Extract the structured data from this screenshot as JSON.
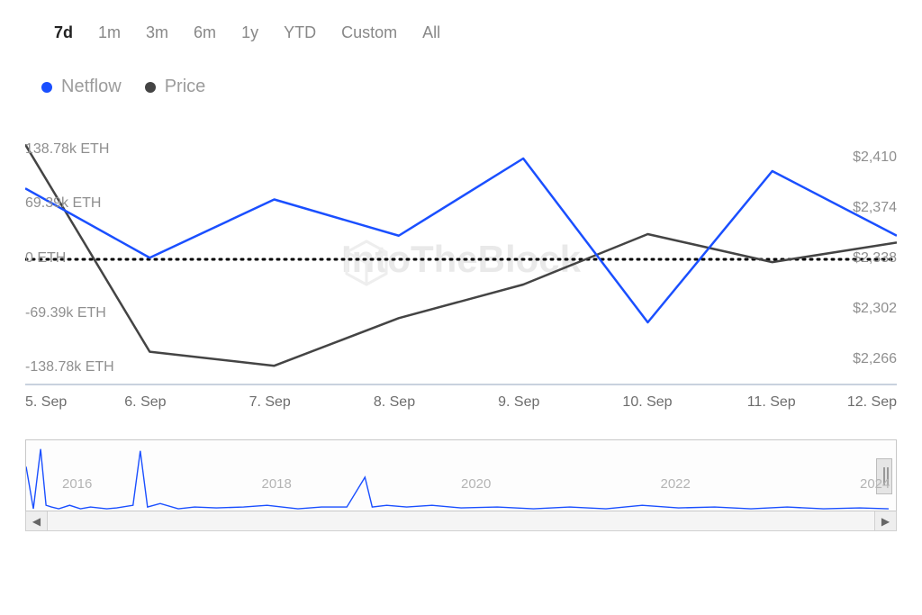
{
  "period_tabs": {
    "items": [
      "7d",
      "1m",
      "3m",
      "6m",
      "1y",
      "YTD",
      "Custom",
      "All"
    ],
    "active_index": 0
  },
  "legend": {
    "series": [
      {
        "name": "Netflow",
        "color": "#1a4fff"
      },
      {
        "name": "Price",
        "color": "#444444"
      }
    ]
  },
  "watermark": {
    "text": "IntoTheBlock"
  },
  "main_chart": {
    "type": "line",
    "x_categories": [
      "5. Sep",
      "6. Sep",
      "7. Sep",
      "8. Sep",
      "9. Sep",
      "10. Sep",
      "11. Sep",
      "12. Sep"
    ],
    "left_axis": {
      "unit": "ETH",
      "ticks": [
        138780,
        69390,
        0,
        -69390,
        -138780
      ],
      "tick_labels": [
        "138.78k ETH",
        "69.39k ETH",
        "0 ETH",
        "-69.39k ETH",
        "-138.78k ETH"
      ],
      "min": -160000,
      "max": 160000
    },
    "right_axis": {
      "unit": "$",
      "ticks": [
        2410,
        2374,
        2338,
        2302,
        2266
      ],
      "tick_labels": [
        "$2,410",
        "$2,374",
        "$2,338",
        "$2,302",
        "$2,266"
      ],
      "min": 2248,
      "max": 2428
    },
    "zero_line": {
      "value": 0,
      "style": "dotted",
      "color": "#000000",
      "width": 3
    },
    "series": {
      "netflow": {
        "axis": "left",
        "color": "#1a4fff",
        "line_width": 2.5,
        "values": [
          90000,
          2000,
          76000,
          30000,
          128000,
          -80000,
          112000,
          30000
        ]
      },
      "price": {
        "axis": "right",
        "color": "#444444",
        "line_width": 2.5,
        "values": [
          2420,
          2272,
          2262,
          2296,
          2320,
          2356,
          2336,
          2350
        ]
      }
    },
    "grid_color": "#e4e4e4",
    "baseline_color": "#b7c4d4",
    "background": "#ffffff",
    "label_fontsize": 16,
    "label_color": "#8f8f8f"
  },
  "minimap": {
    "x_labels": [
      "2016",
      "2018",
      "2020",
      "2022",
      "2024"
    ],
    "series_color": "#1a4fff",
    "background": "#fdfdfd",
    "border_color": "#c8c8c8",
    "handle_color": "#e5e5e5",
    "points": [
      0,
      30,
      8,
      78,
      16,
      10,
      22,
      74,
      28,
      76,
      36,
      78,
      48,
      74,
      60,
      78,
      71,
      76,
      89,
      78,
      100,
      77,
      118,
      74,
      126,
      12,
      134,
      76,
      148,
      72,
      168,
      78,
      186,
      76,
      210,
      77,
      240,
      76,
      266,
      74,
      300,
      78,
      326,
      76,
      354,
      76,
      374,
      42,
      382,
      76,
      398,
      74,
      420,
      76,
      448,
      74,
      480,
      77,
      520,
      76,
      560,
      78,
      600,
      76,
      640,
      78,
      680,
      74,
      720,
      77,
      760,
      76,
      800,
      78,
      840,
      76,
      880,
      78,
      920,
      77,
      952,
      78
    ]
  }
}
